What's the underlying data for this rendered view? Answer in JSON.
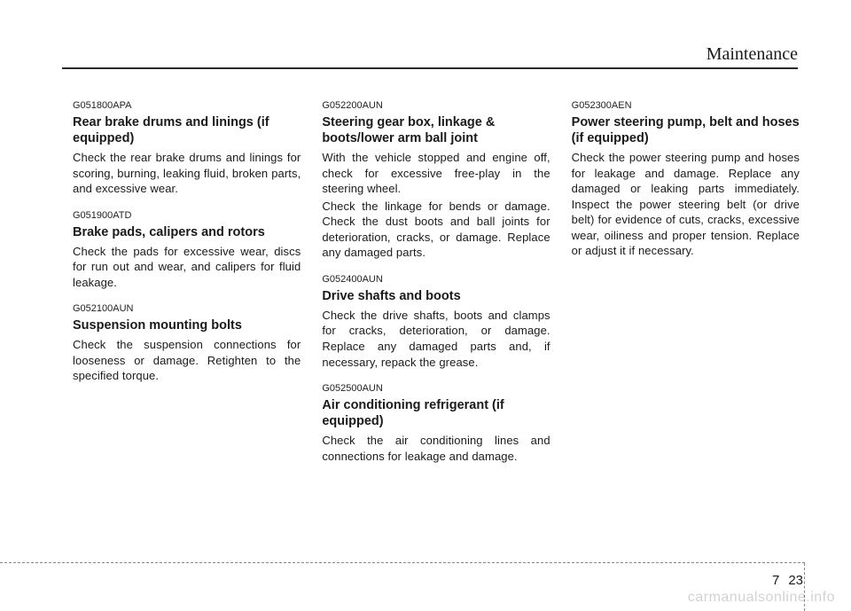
{
  "sectionTitle": "Maintenance",
  "pageChapter": "7",
  "pageNumber": "23",
  "watermark": "carmanualsonline.info",
  "columns": [
    {
      "entries": [
        {
          "code": "G051800APA",
          "heading": "Rear brake drums and linings (if equipped)",
          "paragraphs": [
            "Check the rear brake drums and linings for scoring, burning, leaking fluid, broken parts, and excessive wear."
          ]
        },
        {
          "code": "G051900ATD",
          "heading": "Brake pads, calipers and rotors",
          "paragraphs": [
            "Check the pads for excessive wear, discs for run out and wear, and calipers for fluid leakage."
          ]
        },
        {
          "code": "G052100AUN",
          "heading": "Suspension mounting bolts",
          "paragraphs": [
            "Check the suspension connections for looseness or damage. Retighten to the specified torque."
          ]
        }
      ]
    },
    {
      "entries": [
        {
          "code": "G052200AUN",
          "heading": "Steering gear box, linkage & boots/lower arm ball joint",
          "paragraphs": [
            "With the vehicle stopped and engine off, check for excessive free-play in the steering wheel.",
            "Check the linkage for bends or damage. Check the dust boots and ball joints for deterioration, cracks, or damage. Replace any damaged parts."
          ]
        },
        {
          "code": "G052400AUN",
          "heading": "Drive shafts and boots",
          "paragraphs": [
            "Check the drive shafts, boots and clamps for cracks, deterioration, or damage. Replace any damaged parts and, if necessary, repack the grease."
          ]
        },
        {
          "code": "G052500AUN",
          "heading": "Air conditioning refrigerant (if equipped)",
          "paragraphs": [
            "Check the air conditioning lines and connections for leakage and damage."
          ]
        }
      ]
    },
    {
      "entries": [
        {
          "code": "G052300AEN",
          "heading": "Power steering pump, belt and hoses (if equipped)",
          "paragraphs": [
            "Check the power steering pump and hoses for leakage and damage. Replace any damaged or leaking parts immediately. Inspect the power steering belt (or drive belt) for evidence of cuts, cracks, excessive wear, oiliness and proper tension. Replace or adjust it if necessary."
          ]
        }
      ]
    }
  ]
}
